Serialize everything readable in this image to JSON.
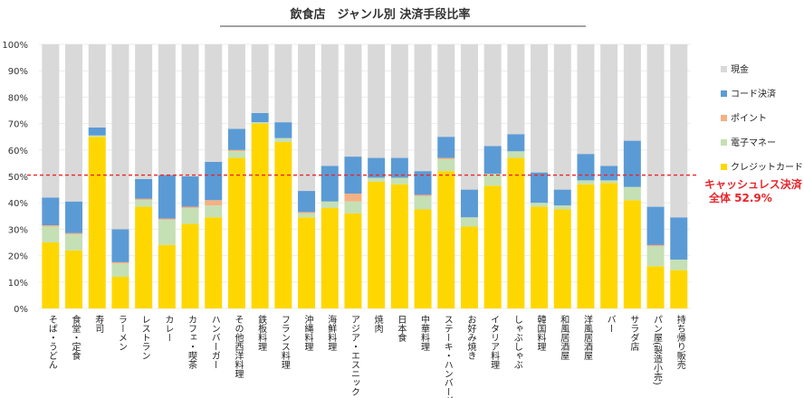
{
  "chart_data": {
    "type": "bar",
    "stacked": true,
    "title": "飲食店　ジャンル別 決済手段比率",
    "ylim": [
      0,
      100
    ],
    "yticks": [
      "0%",
      "10%",
      "20%",
      "30%",
      "40%",
      "50%",
      "60%",
      "70%",
      "80%",
      "90%",
      "100%"
    ],
    "categories": [
      "そば・うどん",
      "食堂・定食",
      "寿司",
      "ラーメン",
      "レストラン",
      "カレー",
      "カフェ・喫茶",
      "ハンバーガー",
      "その他西洋料理",
      "鉄板料理",
      "フランス料理",
      "沖縄料理",
      "海鮮料理",
      "アジア・エスニック",
      "焼肉",
      "日本食",
      "中華料理",
      "ステーキ・ハンバーグ",
      "お好み焼き",
      "イタリア料理",
      "しゃぶしゃぶ",
      "韓国料理",
      "和風居酒屋",
      "洋風居酒屋",
      "バー",
      "サラダ店",
      "パン屋(製造小売)",
      "持ち帰り販売"
    ],
    "series": [
      {
        "name": "クレジットカード",
        "color": "#ffd700",
        "values": [
          25,
          22,
          65,
          12,
          38.5,
          24,
          32,
          34.5,
          57,
          70,
          63,
          34.5,
          38,
          36,
          48,
          47,
          37.5,
          52,
          31,
          46.5,
          57,
          38.5,
          37.5,
          47,
          47.5,
          41,
          16,
          14.5
        ]
      },
      {
        "name": "電子マネー",
        "color": "#c5e0b4",
        "values": [
          6,
          6,
          0.5,
          5,
          2.5,
          9.5,
          6,
          4.5,
          2.5,
          0.5,
          1.5,
          1.5,
          2.5,
          4.5,
          1.5,
          2.5,
          5,
          4.5,
          3.5,
          4.5,
          2.5,
          1.5,
          1.5,
          1.5,
          1,
          5,
          7.5,
          4
        ]
      },
      {
        "name": "ポイント",
        "color": "#f4b183",
        "values": [
          0.5,
          0.5,
          0,
          0.5,
          0.5,
          0.5,
          0.5,
          2,
          0.5,
          0,
          0,
          0.5,
          0,
          3,
          0,
          0,
          0.5,
          0.5,
          0,
          0,
          0,
          0,
          0,
          0,
          0,
          0,
          0.5,
          0
        ]
      },
      {
        "name": "コード決済",
        "color": "#5b9bd5",
        "values": [
          10.5,
          12,
          3,
          12.5,
          7.5,
          16.5,
          11.5,
          14.5,
          8,
          3.5,
          6,
          8,
          13.5,
          14,
          7.5,
          7.5,
          9,
          8,
          10.5,
          10.5,
          6.5,
          11.5,
          6,
          10,
          5.5,
          17.5,
          14.5,
          16
        ]
      },
      {
        "name": "現金",
        "color": "#d9d9d9",
        "values": [
          58,
          59.5,
          31.5,
          70,
          51,
          49.5,
          50,
          44.5,
          32,
          26,
          29.5,
          55.5,
          46,
          42.5,
          43,
          43,
          48,
          35,
          55,
          38.5,
          34,
          48.5,
          55,
          41.5,
          46,
          36.5,
          61.5,
          65.5
        ]
      }
    ],
    "legend_order": [
      "現金",
      "コード決済",
      "ポイント",
      "電子マネー",
      "クレジットカード"
    ],
    "reference_line": {
      "value": 50.5,
      "color": "#e8262c"
    },
    "annotation": [
      "キャッシュレス決済",
      "全体 52.9%"
    ]
  }
}
